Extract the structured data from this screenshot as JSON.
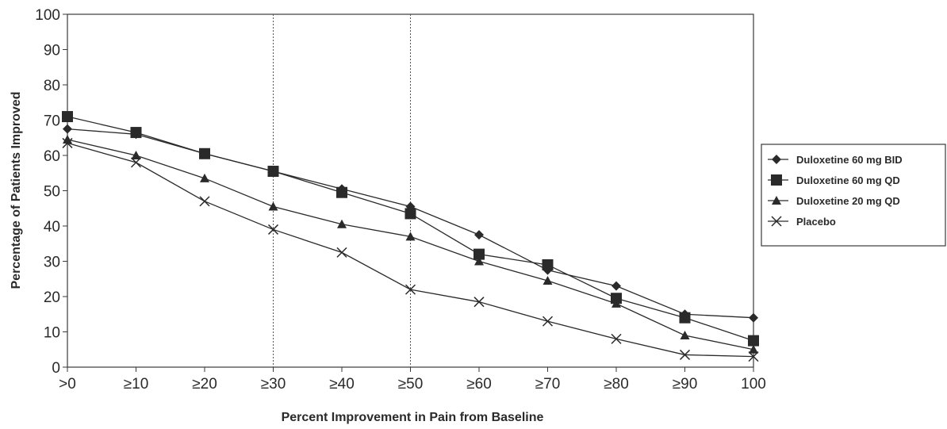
{
  "chart_data": {
    "type": "line",
    "xlabel": "Percent Improvement in Pain from Baseline",
    "ylabel": "Percentage of Patients Improved",
    "categories": [
      ">0",
      "≥10",
      "≥20",
      "≥30",
      "≥40",
      "≥50",
      "≥60",
      "≥70",
      "≥80",
      "≥90",
      "100"
    ],
    "ylim": [
      0,
      100
    ],
    "yticks": [
      "0",
      "10",
      "20",
      "30",
      "40",
      "50",
      "60",
      "70",
      "80",
      "90",
      "100"
    ],
    "reference_lines_at": [
      "≥30",
      "≥50"
    ],
    "grid": false,
    "legend_position": "right",
    "series": [
      {
        "name": "Duloxetine 60 mg BID",
        "marker": "diamond",
        "values": [
          67.5,
          66,
          60.5,
          55.5,
          50.5,
          45.5,
          37.5,
          27.5,
          23,
          15,
          14
        ]
      },
      {
        "name": "Duloxetine 60 mg QD",
        "marker": "square",
        "values": [
          71,
          66.5,
          60.5,
          55.5,
          49.5,
          43.5,
          32,
          29,
          19.5,
          14,
          7.5
        ]
      },
      {
        "name": "Duloxetine 20 mg QD",
        "marker": "triangle",
        "values": [
          64.5,
          60,
          53.5,
          45.5,
          40.5,
          37,
          30,
          24.5,
          18,
          9,
          5
        ]
      },
      {
        "name": "Placebo",
        "marker": "x",
        "values": [
          63.5,
          58,
          47,
          39,
          32.5,
          22,
          18.5,
          13,
          8,
          3.5,
          3
        ]
      }
    ],
    "colors": {
      "line": "#2a2a2a",
      "axis": "#3a3a3a",
      "background": "#ffffff"
    }
  }
}
